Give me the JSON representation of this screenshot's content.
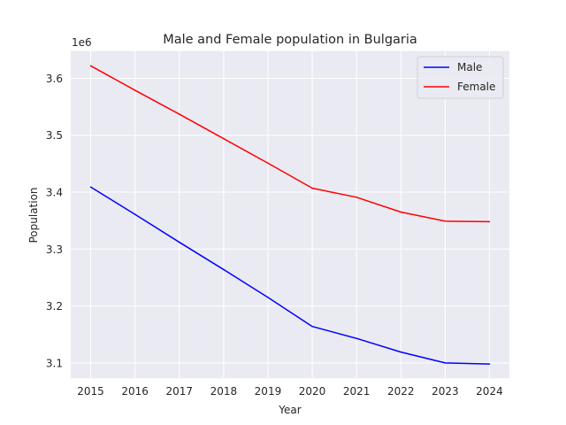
{
  "chart_data": {
    "type": "line",
    "title": "Male and Female population in Bulgaria",
    "xlabel": "Year",
    "ylabel": "Population",
    "y_offset_label": "1e6",
    "x": [
      2015,
      2016,
      2017,
      2018,
      2019,
      2020,
      2021,
      2022,
      2023,
      2024
    ],
    "x_tick_labels": [
      "2015",
      "2016",
      "2017",
      "2018",
      "2019",
      "2020",
      "2021",
      "2022",
      "2023",
      "2024"
    ],
    "y_tick_values": [
      3100000,
      3200000,
      3300000,
      3400000,
      3500000,
      3600000
    ],
    "y_tick_labels": [
      "3.1",
      "3.2",
      "3.3",
      "3.4",
      "3.5",
      "3.6"
    ],
    "ylim": [
      3073000,
      3648000
    ],
    "xlim": [
      2014.55,
      2024.45
    ],
    "grid": true,
    "legend_position": "top-right",
    "series": [
      {
        "name": "Male",
        "color": "#0000ff",
        "values": [
          3409000,
          3361000,
          3312000,
          3264000,
          3215000,
          3164000,
          3143000,
          3119000,
          3100000,
          3098000
        ]
      },
      {
        "name": "Female",
        "color": "#ff0000",
        "values": [
          3622000,
          3579000,
          3537000,
          3494000,
          3451000,
          3407000,
          3391000,
          3365000,
          3349000,
          3348000
        ]
      }
    ]
  }
}
